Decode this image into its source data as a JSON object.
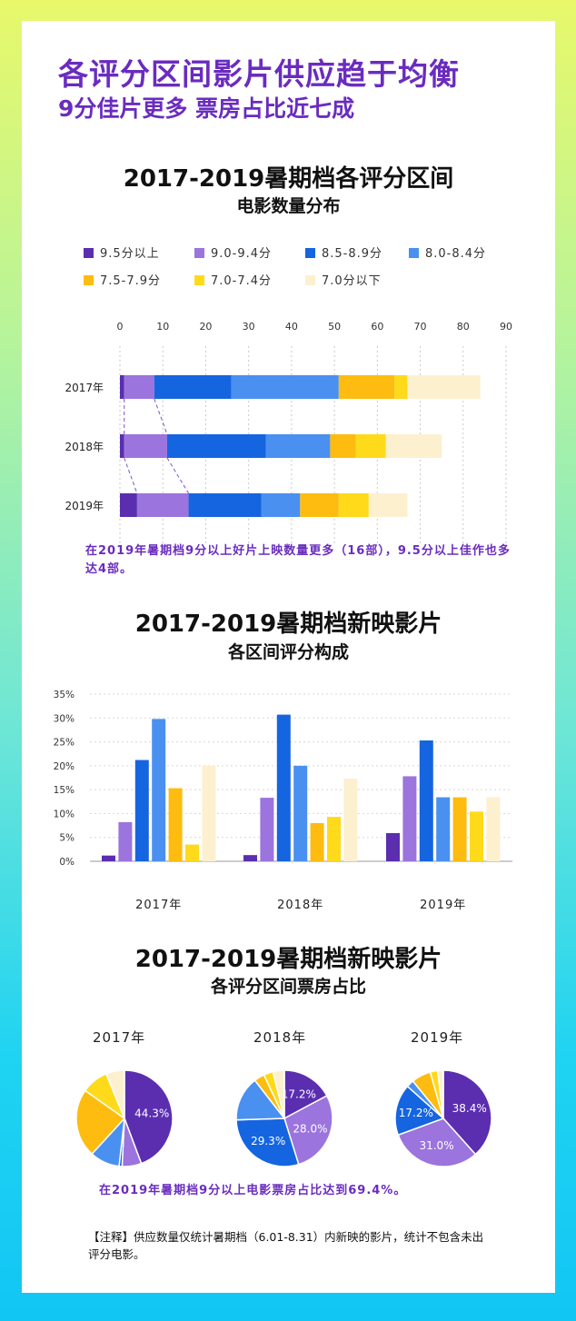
{
  "header": {
    "title": "各评分区间影片供应趋于均衡",
    "subtitle": "9分佳片更多 票房占比近七成"
  },
  "section1": {
    "title_line1": "2017-2019暑期档各评分区间",
    "title_line2": "电影数量分布",
    "note": "在2019年暑期档9分以上好片上映数量更多（16部），9.5分以上佳作也多达4部。"
  },
  "section2": {
    "title_line1": "2017-2019暑期档新映影片",
    "title_line2": "各区间评分构成"
  },
  "section3": {
    "title_line1": "2017-2019暑期档新映影片",
    "title_line2": "各评分区间票房占比",
    "note": "在2019年暑期档9分以上电影票房占比达到69.4%。"
  },
  "footnote": "【注释】供应数量仅统计暑期档（6.01-8.31）内新映的影片，统计不包含未出评分电影。",
  "legend": [
    {
      "label": "9.5分以上",
      "color": "#5b2eb0"
    },
    {
      "label": "9.0-9.4分",
      "color": "#9b74dd"
    },
    {
      "label": "8.5-8.9分",
      "color": "#1565e0"
    },
    {
      "label": "8.0-8.4分",
      "color": "#4a90f0"
    },
    {
      "label": "7.5-7.9分",
      "color": "#fdbc0f"
    },
    {
      "label": "7.0-7.4分",
      "color": "#ffda1a"
    },
    {
      "label": "7.0分以下",
      "color": "#fdf0cf"
    }
  ],
  "chart_data": [
    {
      "type": "bar",
      "orientation": "horizontal-stacked",
      "title": "2017-2019暑期档各评分区间电影数量分布",
      "categories": [
        "2017年",
        "2018年",
        "2019年"
      ],
      "xlim": [
        0,
        90
      ],
      "xticks": [
        0,
        10,
        20,
        30,
        40,
        50,
        60,
        70,
        80,
        90
      ],
      "series": [
        {
          "name": "9.5分以上",
          "values": [
            1,
            1,
            4
          ]
        },
        {
          "name": "9.0-9.4分",
          "values": [
            7,
            10,
            12
          ]
        },
        {
          "name": "8.5-8.9分",
          "values": [
            18,
            23,
            17
          ]
        },
        {
          "name": "8.0-8.4分",
          "values": [
            25,
            15,
            9
          ]
        },
        {
          "name": "7.5-7.9分",
          "values": [
            13,
            6,
            9
          ]
        },
        {
          "name": "7.0-7.4分",
          "values": [
            3,
            7,
            7
          ]
        },
        {
          "name": "7.0分以下",
          "values": [
            17,
            13,
            9
          ]
        }
      ]
    },
    {
      "type": "bar",
      "title": "2017-2019暑期档新映影片各区间评分构成",
      "categories": [
        "2017年",
        "2018年",
        "2019年"
      ],
      "ylim": [
        0,
        35
      ],
      "yticks": [
        "0%",
        "5%",
        "10%",
        "15%",
        "20%",
        "25%",
        "30%",
        "35%"
      ],
      "series": [
        {
          "name": "9.5分以上",
          "values": [
            1.2,
            1.3,
            5.9
          ]
        },
        {
          "name": "9.0-9.4分",
          "values": [
            8.2,
            13.3,
            17.8
          ]
        },
        {
          "name": "8.5-8.9分",
          "values": [
            21.2,
            30.7,
            25.3
          ]
        },
        {
          "name": "8.0-8.4分",
          "values": [
            29.8,
            20.0,
            13.4
          ]
        },
        {
          "name": "7.5-7.9分",
          "values": [
            15.3,
            8.0,
            13.4
          ]
        },
        {
          "name": "7.0-7.4分",
          "values": [
            3.5,
            9.3,
            10.4
          ]
        },
        {
          "name": "7.0分以下",
          "values": [
            20.0,
            17.3,
            13.4
          ]
        }
      ]
    },
    {
      "type": "pie",
      "title": "2017-2019暑期档新映影片各评分区间票房占比",
      "pies": [
        {
          "year": "2017年",
          "labels": [
            "44.3%",
            "",
            "",
            "",
            "",
            "",
            ""
          ],
          "values": [
            44.3,
            6.5,
            1.0,
            10.0,
            23.0,
            9.0,
            6.2
          ]
        },
        {
          "year": "2018年",
          "labels": [
            "17.2%",
            "28.0%",
            "29.3%",
            "",
            "",
            "",
            ""
          ],
          "values": [
            17.2,
            28.0,
            29.3,
            15.0,
            3.5,
            3.2,
            3.8
          ]
        },
        {
          "year": "2019年",
          "labels": [
            "38.4%",
            "31.0%",
            "17.2%",
            "",
            "",
            "",
            ""
          ],
          "values": [
            38.4,
            31.0,
            17.2,
            2.5,
            6.5,
            2.5,
            1.9
          ]
        }
      ]
    }
  ]
}
